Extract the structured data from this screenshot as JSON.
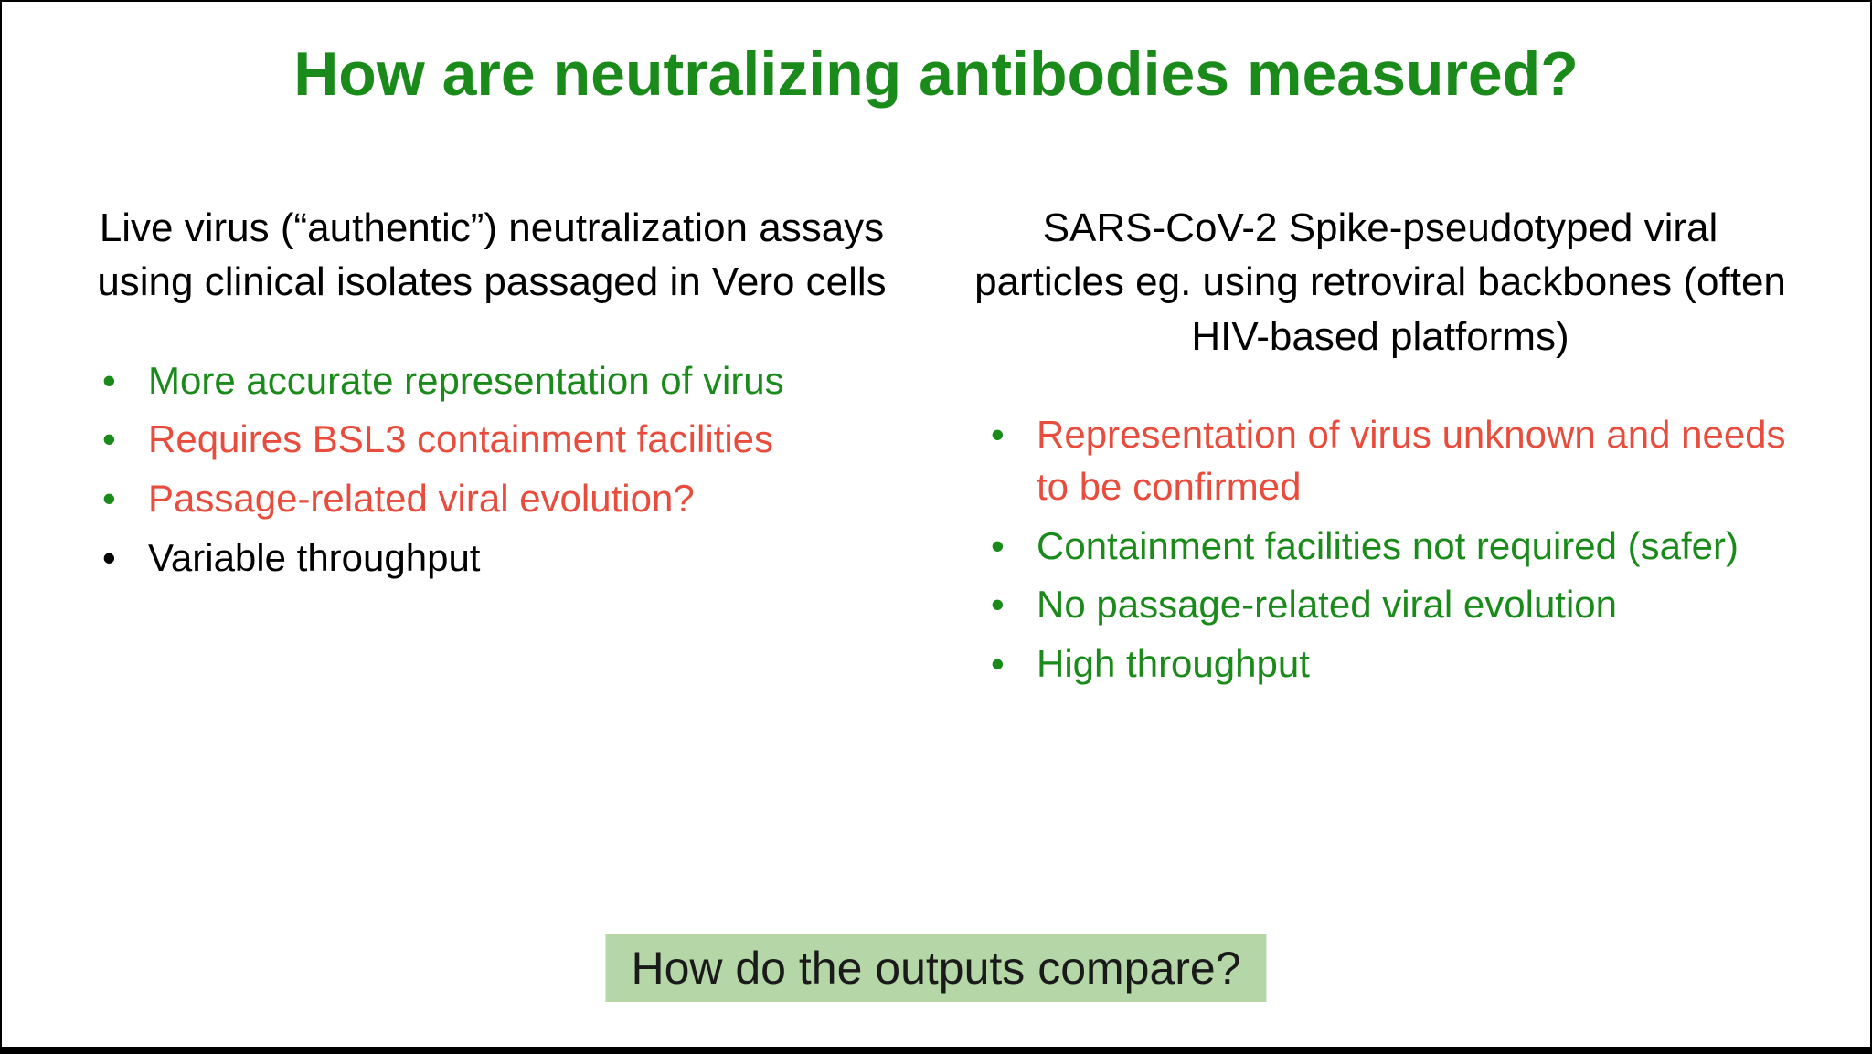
{
  "colors": {
    "title_green": "#1a8a1a",
    "text_green": "#1a8a1a",
    "text_red": "#e84c3d",
    "text_black": "#000000",
    "bullet_green": "#1a8a1a",
    "bullet_black": "#000000",
    "footer_bg": "#b5d6a7",
    "footer_text": "#1a1a1a",
    "background": "#ffffff"
  },
  "title": "How are neutralizing antibodies measured?",
  "left_column": {
    "header": "Live virus (“authentic”) neutralization assays using clinical isolates passaged in Vero cells",
    "items": [
      {
        "text": "More accurate representation of virus",
        "text_color": "#1a8a1a",
        "bullet_color": "#1a8a1a"
      },
      {
        "text": "Requires BSL3 containment facilities",
        "text_color": "#e84c3d",
        "bullet_color": "#1a8a1a"
      },
      {
        "text": "Passage-related viral evolution?",
        "text_color": "#e84c3d",
        "bullet_color": "#1a8a1a"
      },
      {
        "text": "Variable throughput",
        "text_color": "#000000",
        "bullet_color": "#000000"
      }
    ]
  },
  "right_column": {
    "header": "SARS-CoV-2 Spike-pseudotyped viral particles eg. using retroviral backbones (often HIV-based platforms)",
    "items": [
      {
        "text": "Representation of virus unknown and needs to be confirmed",
        "text_color": "#e84c3d",
        "bullet_color": "#1a8a1a"
      },
      {
        "text": "Containment facilities not required (safer)",
        "text_color": "#1a8a1a",
        "bullet_color": "#1a8a1a"
      },
      {
        "text": "No passage-related viral evolution",
        "text_color": "#1a8a1a",
        "bullet_color": "#1a8a1a"
      },
      {
        "text": "High throughput",
        "text_color": "#1a8a1a",
        "bullet_color": "#1a8a1a"
      }
    ]
  },
  "footer": "How do the outputs compare?"
}
